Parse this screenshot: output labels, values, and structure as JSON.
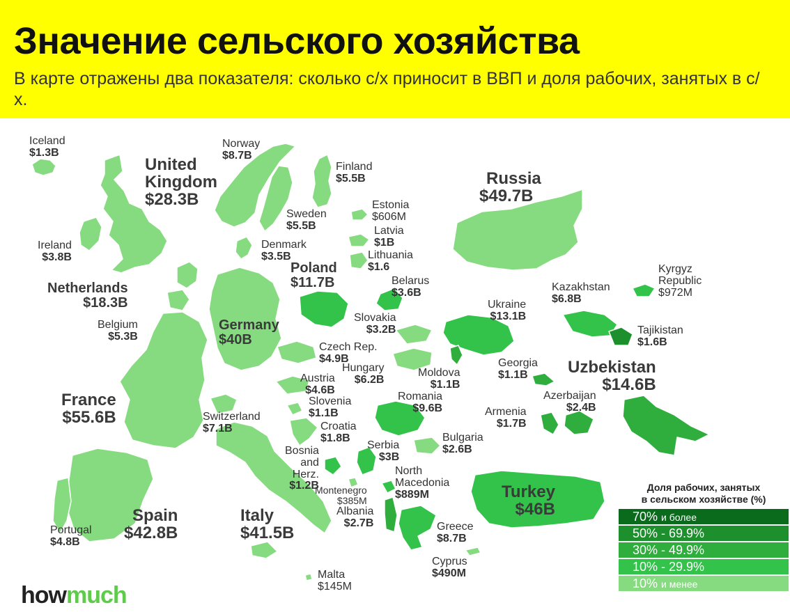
{
  "header": {
    "title": "Значение сельского хозяйства",
    "subtitle": "В карте отражены два показателя: сколько с/х приносит в ВВП и доля рабочих, занятых в с/х."
  },
  "colors": {
    "header_bg": "#ffff00",
    "tier_70_plus": "#0a6b1c",
    "tier_50_69": "#1d8f2c",
    "tier_30_49": "#2fad3d",
    "tier_10_29": "#33c24a",
    "tier_under_10": "#86db80"
  },
  "countries": {
    "iceland": {
      "name": "Iceland",
      "value": "$1.3B"
    },
    "norway": {
      "name": "Norway",
      "value": "$8.7B"
    },
    "uk": {
      "name": "United Kingdom",
      "name1": "United",
      "name2": "Kingdom",
      "value": "$28.3B"
    },
    "finland": {
      "name": "Finland",
      "value": "$5.5B"
    },
    "russia": {
      "name": "Russia",
      "value": "$49.7B"
    },
    "sweden": {
      "name": "Sweden",
      "value": "$5.5B"
    },
    "estonia": {
      "name": "Estonia",
      "value": "$606M"
    },
    "ireland": {
      "name": "Ireland",
      "value": "$3.8B"
    },
    "denmark": {
      "name": "Denmark",
      "value": "$3.5B"
    },
    "latvia": {
      "name": "Latvia",
      "value": "$1B"
    },
    "lithuania": {
      "name": "Lithuania",
      "value": "$1.6"
    },
    "poland": {
      "name": "Poland",
      "value": "$11.7B"
    },
    "belarus": {
      "name": "Belarus",
      "value": "$3.6B"
    },
    "kyrgyz": {
      "name1": "Kyrgyz",
      "name2": "Republic",
      "value": "$972M"
    },
    "netherlands": {
      "name": "Netherlands",
      "value": "$18.3B"
    },
    "kazakhstan": {
      "name": "Kazakhstan",
      "value": "$6.8B"
    },
    "ukraine": {
      "name": "Ukraine",
      "value": "$13.1B"
    },
    "belgium": {
      "name": "Belgium",
      "value": "$5.3B"
    },
    "germany": {
      "name": "Germany",
      "value": "$40B"
    },
    "slovakia": {
      "name": "Slovakia",
      "value": "$3.2B"
    },
    "tajikistan": {
      "name": "Tajikistan",
      "value": "$1.6B"
    },
    "czech": {
      "name": "Czech Rep.",
      "value": "$4.9B"
    },
    "hungary": {
      "name": "Hungary",
      "value": "$6.2B"
    },
    "georgia": {
      "name": "Georgia",
      "value": "$1.1B"
    },
    "uzbekistan": {
      "name": "Uzbekistan",
      "value": "$14.6B"
    },
    "moldova": {
      "name": "Moldova",
      "value": "$1.1B"
    },
    "austria": {
      "name": "Austria",
      "value": "$4.6B"
    },
    "slovenia": {
      "name": "Slovenia",
      "value": "$1.1B"
    },
    "france": {
      "name": "France",
      "value": "$55.6B"
    },
    "romania": {
      "name": "Romania",
      "value": "$9.6B"
    },
    "azerbaijan": {
      "name": "Azerbaijan",
      "value": "$2.4B"
    },
    "armenia": {
      "name": "Armenia",
      "value": "$1.7B"
    },
    "switzerland": {
      "name": "Switzerland",
      "value": "$7.1B"
    },
    "croatia": {
      "name": "Croatia",
      "value": "$1.8B"
    },
    "bulgaria": {
      "name": "Bulgaria",
      "value": "$2.6B"
    },
    "bosnia": {
      "name1": "Bosnia",
      "name2": "and",
      "name3": "Herz.",
      "value": "$1.2B"
    },
    "serbia": {
      "name": "Serbia",
      "value": "$3B"
    },
    "north_macedonia": {
      "name1": "North",
      "name2": "Macedonia",
      "value": "$889M"
    },
    "montenegro": {
      "name": "Montenegro",
      "value": "$385M"
    },
    "turkey": {
      "name": "Turkey",
      "value": "$46B"
    },
    "albania": {
      "name": "Albania",
      "value": "$2.7B"
    },
    "spain": {
      "name": "Spain",
      "value": "$42.8B"
    },
    "italy": {
      "name": "Italy",
      "value": "$41.5B"
    },
    "portugal": {
      "name": "Portugal",
      "value": "$4.8B"
    },
    "greece": {
      "name": "Greece",
      "value": "$8.7B"
    },
    "cyprus": {
      "name": "Cyprus",
      "value": "$490M"
    },
    "malta": {
      "name": "Malta",
      "value": "$145M"
    }
  },
  "legend": {
    "title_line1": "Доля рабочих, занятых",
    "title_line2": "в сельском хозяйстве (%)",
    "rows": [
      {
        "range": "70%",
        "suffix": "и более"
      },
      {
        "range": "50% - 69.9%",
        "suffix": ""
      },
      {
        "range": "30% - 49.9%",
        "suffix": ""
      },
      {
        "range": "10% - 29.9%",
        "suffix": ""
      },
      {
        "range": "10%",
        "suffix": "и менее"
      }
    ]
  },
  "brand": {
    "part1": "how",
    "part2": "much"
  }
}
